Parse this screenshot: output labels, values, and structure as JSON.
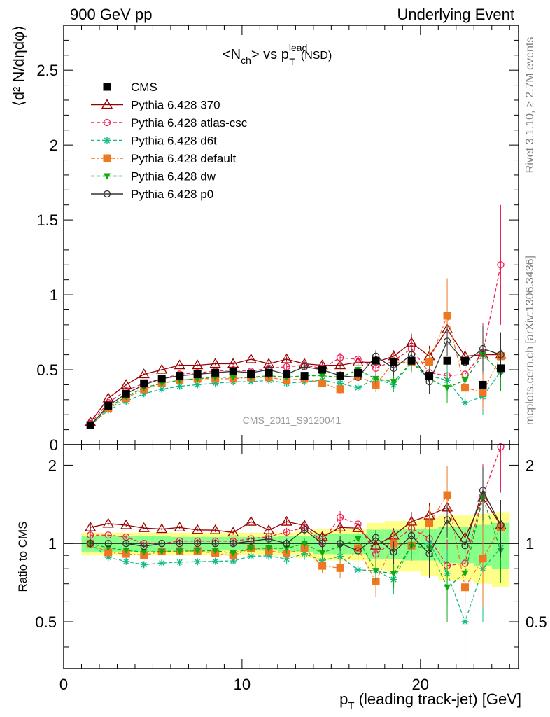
{
  "header": {
    "left": "900 GeV pp",
    "right": "Underlying Event"
  },
  "side_labels": {
    "rivet": "Rivet 3.1.10, ≥ 2.7M events",
    "mcplots": "mcplots.cern.ch [arXiv:1306.3436]"
  },
  "chart_data": {
    "type": "scatter",
    "title": {
      "main": "<N",
      "main_sub": "ch",
      "mid": "> vs p",
      "mid_sub": "T",
      "mid_sup": "lead",
      "tail": "(NSD)"
    },
    "watermark": "CMS_2011_S9120041",
    "ylabel": "⟨d² N/dηdφ⟩",
    "ratio_ylabel": "Ratio to CMS",
    "xlabel": {
      "p": "p",
      "sub": "T",
      "rest": " (leading track-jet) [GeV]"
    },
    "xlim": [
      0,
      25.5
    ],
    "ylim": [
      0,
      2.8
    ],
    "ratio_ylim": [
      0.33,
      2.4
    ],
    "xticks": [
      "0",
      "10",
      "20"
    ],
    "yticks": [
      "0",
      "0.5",
      "1",
      "1.5",
      "2",
      "2.5"
    ],
    "ratio_yticks": [
      "0.5",
      "1",
      "2"
    ],
    "x": [
      1.5,
      2.5,
      3.5,
      4.5,
      5.5,
      6.5,
      7.5,
      8.5,
      9.5,
      10.5,
      11.5,
      12.5,
      13.5,
      14.5,
      15.5,
      16.5,
      17.5,
      18.5,
      19.5,
      20.5,
      21.5,
      22.5,
      23.5,
      24.5
    ],
    "data": {
      "name": "CMS",
      "color": "#000000",
      "values": [
        0.13,
        0.26,
        0.34,
        0.41,
        0.44,
        0.46,
        0.47,
        0.48,
        0.49,
        0.47,
        0.48,
        0.47,
        0.46,
        0.5,
        0.46,
        0.48,
        0.56,
        0.55,
        0.56,
        0.46,
        0.56,
        0.56,
        0.4,
        0.51
      ],
      "errors": [
        0.01,
        0.01,
        0.01,
        0.01,
        0.01,
        0.01,
        0.01,
        0.01,
        0.01,
        0.01,
        0.01,
        0.01,
        0.01,
        0.01,
        0.01,
        0.01,
        0.02,
        0.02,
        0.02,
        0.02,
        0.02,
        0.02,
        0.02,
        0.02
      ],
      "band_inner": [
        0.07,
        0.07,
        0.07,
        0.07,
        0.07,
        0.06,
        0.06,
        0.06,
        0.06,
        0.06,
        0.06,
        0.07,
        0.07,
        0.09,
        0.09,
        0.09,
        0.13,
        0.13,
        0.14,
        0.14,
        0.16,
        0.16,
        0.18,
        0.2
      ],
      "band_outer": [
        0.1,
        0.1,
        0.1,
        0.1,
        0.1,
        0.1,
        0.1,
        0.1,
        0.1,
        0.1,
        0.1,
        0.1,
        0.12,
        0.14,
        0.14,
        0.14,
        0.2,
        0.22,
        0.22,
        0.25,
        0.28,
        0.28,
        0.3,
        0.32
      ]
    },
    "series": [
      {
        "name": "Pythia 6.428 370",
        "color": "#990000",
        "marker": "triangle-open",
        "dash": "",
        "values": [
          0.15,
          0.31,
          0.4,
          0.47,
          0.5,
          0.53,
          0.53,
          0.54,
          0.54,
          0.57,
          0.54,
          0.57,
          0.54,
          0.53,
          0.53,
          0.55,
          0.55,
          0.59,
          0.68,
          0.59,
          0.77,
          0.59,
          0.6,
          0.6
        ],
        "errors": [
          0.005,
          0.005,
          0.005,
          0.006,
          0.006,
          0.007,
          0.008,
          0.009,
          0.01,
          0.012,
          0.014,
          0.017,
          0.02,
          0.022,
          0.026,
          0.03,
          0.034,
          0.04,
          0.06,
          0.07,
          0.09,
          0.1,
          0.12,
          0.13
        ]
      },
      {
        "name": "Pythia 6.428 atlas-csc",
        "color": "#ee2255",
        "marker": "circle-open",
        "dash": "5,3",
        "values": [
          0.14,
          0.28,
          0.36,
          0.41,
          0.44,
          0.47,
          0.48,
          0.49,
          0.5,
          0.49,
          0.51,
          0.52,
          0.53,
          0.51,
          0.58,
          0.57,
          0.51,
          0.56,
          0.64,
          0.48,
          0.46,
          0.47,
          0.61,
          1.2
        ],
        "errors": [
          0.005,
          0.005,
          0.006,
          0.006,
          0.007,
          0.008,
          0.009,
          0.01,
          0.012,
          0.014,
          0.017,
          0.02,
          0.024,
          0.028,
          0.033,
          0.04,
          0.05,
          0.06,
          0.07,
          0.1,
          0.12,
          0.14,
          0.2,
          0.4
        ]
      },
      {
        "name": "Pythia 6.428 d6t",
        "color": "#11bb88",
        "marker": "star",
        "dash": "5,3",
        "values": [
          0.13,
          0.23,
          0.29,
          0.34,
          0.37,
          0.39,
          0.4,
          0.41,
          0.42,
          0.42,
          0.43,
          0.41,
          0.42,
          0.43,
          0.41,
          0.38,
          0.44,
          0.4,
          0.55,
          0.46,
          0.43,
          0.28,
          0.32,
          0.49
        ],
        "errors": [
          0.005,
          0.005,
          0.006,
          0.006,
          0.007,
          0.008,
          0.009,
          0.01,
          0.012,
          0.014,
          0.016,
          0.02,
          0.022,
          0.026,
          0.03,
          0.035,
          0.04,
          0.05,
          0.06,
          0.08,
          0.1,
          0.1,
          0.12,
          0.12
        ]
      },
      {
        "name": "Pythia 6.428 default",
        "color": "#ee7722",
        "marker": "square",
        "dash": "6,3,2,3",
        "values": [
          0.13,
          0.24,
          0.31,
          0.37,
          0.41,
          0.43,
          0.44,
          0.44,
          0.44,
          0.45,
          0.45,
          0.43,
          0.44,
          0.41,
          0.37,
          0.46,
          0.4,
          0.55,
          0.55,
          0.55,
          0.86,
          0.38,
          0.35,
          0.59
        ],
        "errors": [
          0.005,
          0.005,
          0.006,
          0.006,
          0.007,
          0.008,
          0.009,
          0.01,
          0.012,
          0.014,
          0.016,
          0.02,
          0.022,
          0.026,
          0.03,
          0.04,
          0.05,
          0.06,
          0.07,
          0.09,
          0.25,
          0.1,
          0.12,
          0.15
        ]
      },
      {
        "name": "Pythia 6.428 dw",
        "color": "#11aa11",
        "marker": "triangle-down",
        "dash": "5,3",
        "values": [
          0.13,
          0.25,
          0.32,
          0.38,
          0.41,
          0.43,
          0.44,
          0.45,
          0.45,
          0.45,
          0.46,
          0.45,
          0.46,
          0.46,
          0.45,
          0.5,
          0.44,
          0.42,
          0.55,
          0.44,
          0.38,
          0.43,
          0.6,
          0.48
        ],
        "errors": [
          0.005,
          0.005,
          0.006,
          0.006,
          0.007,
          0.008,
          0.009,
          0.01,
          0.012,
          0.014,
          0.016,
          0.02,
          0.022,
          0.026,
          0.03,
          0.035,
          0.04,
          0.05,
          0.06,
          0.08,
          0.1,
          0.1,
          0.12,
          0.12
        ]
      },
      {
        "name": "Pythia 6.428 p0",
        "color": "#333333",
        "marker": "circle-open",
        "dash": "",
        "values": [
          0.13,
          0.26,
          0.34,
          0.4,
          0.44,
          0.46,
          0.47,
          0.48,
          0.49,
          0.48,
          0.5,
          0.47,
          0.52,
          0.5,
          0.46,
          0.45,
          0.59,
          0.51,
          0.6,
          0.42,
          0.69,
          0.55,
          0.64,
          0.6
        ],
        "errors": [
          0.005,
          0.005,
          0.006,
          0.006,
          0.007,
          0.008,
          0.009,
          0.01,
          0.012,
          0.014,
          0.016,
          0.02,
          0.022,
          0.026,
          0.03,
          0.035,
          0.04,
          0.05,
          0.06,
          0.08,
          0.1,
          0.1,
          0.15,
          0.15
        ]
      }
    ]
  }
}
